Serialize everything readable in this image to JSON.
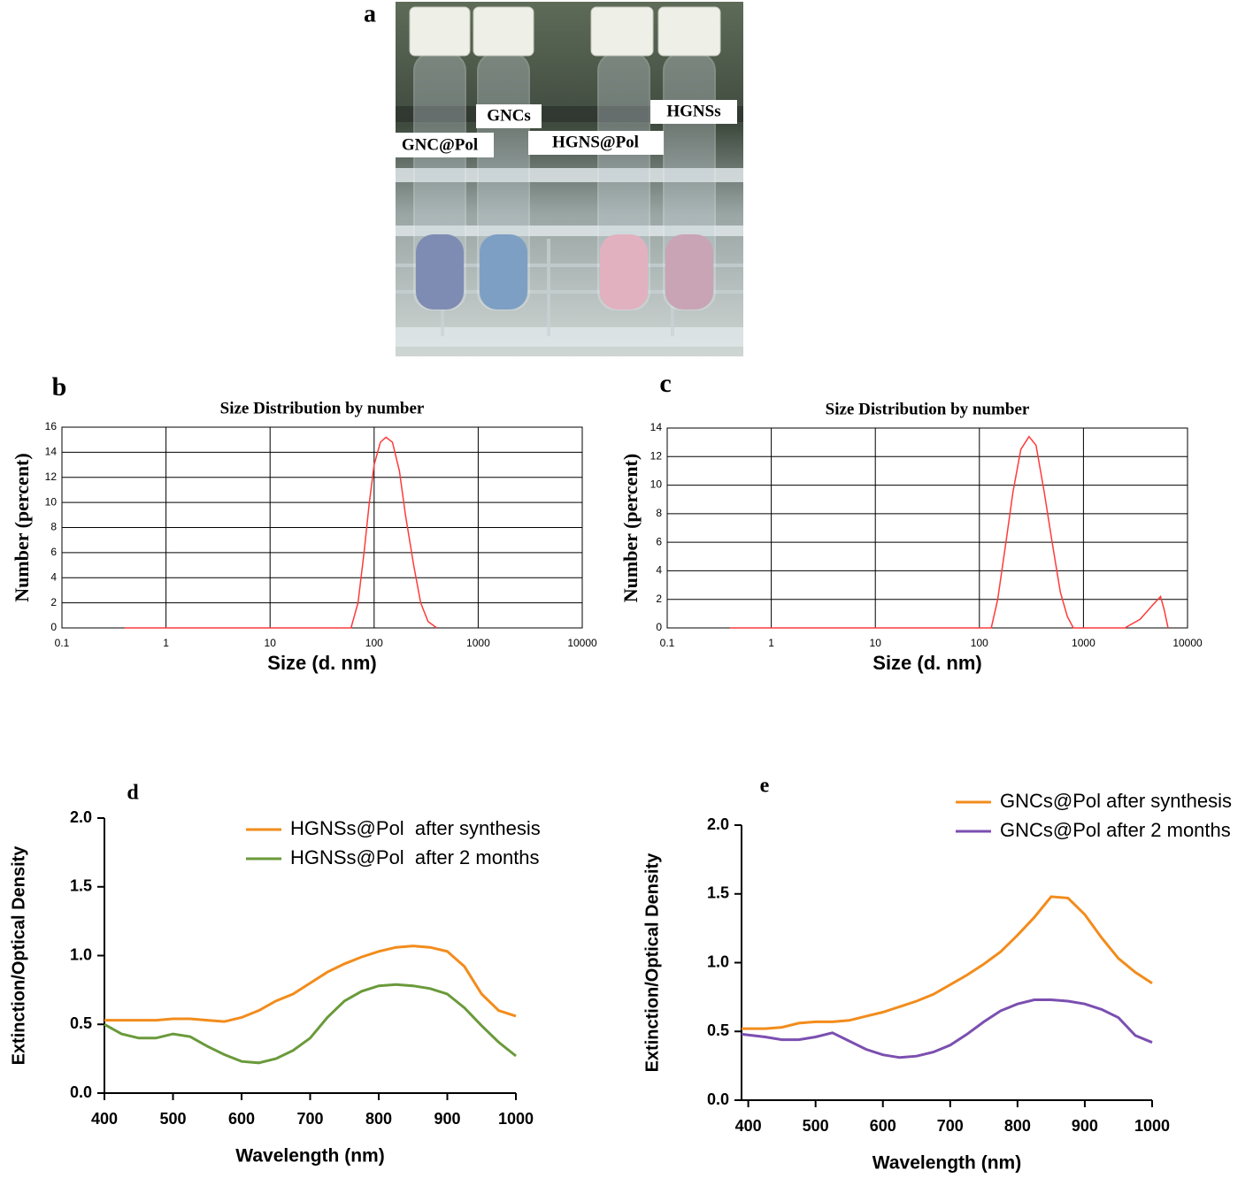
{
  "panel_a": {
    "label": "a",
    "vial_labels": [
      "GNC@Pol",
      "GNCs",
      "HGNS@Pol",
      "HGNSs"
    ]
  },
  "chart_data": [
    {
      "type": "line",
      "panel": "b",
      "title": "Size Distribution by number",
      "x_label": "Size (d. nm)",
      "y_label": "Number (percent)",
      "x_scale": "log",
      "grid": true,
      "color": "#ff3b3b",
      "x": [
        0.4,
        60,
        70,
        80,
        90,
        100,
        115,
        130,
        150,
        175,
        200,
        240,
        280,
        330,
        400
      ],
      "values": [
        0,
        0,
        2,
        6,
        10,
        13,
        14.8,
        15.2,
        14.8,
        12.5,
        9,
        5,
        2,
        0.5,
        0
      ],
      "xlim": [
        0.1,
        10000
      ],
      "xticks": [
        0.1,
        1,
        10,
        100,
        1000,
        10000
      ],
      "ylim": [
        0,
        16
      ],
      "yticks": [
        0,
        2,
        4,
        6,
        8,
        10,
        12,
        14,
        16
      ]
    },
    {
      "type": "line",
      "panel": "c",
      "title": "Size Distribution by number",
      "x_label": "Size (d. nm)",
      "y_label": "Number (percent)",
      "x_scale": "log",
      "grid": true,
      "color": "#ff3b3b",
      "x": [
        0.4,
        130,
        150,
        180,
        210,
        250,
        300,
        350,
        420,
        500,
        600,
        700,
        800,
        2500,
        3500,
        4500,
        5500,
        6000,
        6500
      ],
      "values": [
        0,
        0,
        2,
        6,
        9.5,
        12.5,
        13.4,
        12.8,
        9.5,
        6,
        2.5,
        0.8,
        0,
        0,
        0.6,
        1.5,
        2.2,
        1.2,
        0
      ],
      "xlim": [
        0.1,
        10000
      ],
      "xticks": [
        0.1,
        1,
        10,
        100,
        1000,
        10000
      ],
      "ylim": [
        0,
        14
      ],
      "yticks": [
        0,
        2,
        4,
        6,
        8,
        10,
        12,
        14
      ]
    },
    {
      "type": "line",
      "panel": "d",
      "x_label": "Wavelength (nm)",
      "y_label": "Extinction/Optical Density",
      "x_scale": "linear",
      "grid": false,
      "legend": "upper right",
      "x": [
        400,
        425,
        450,
        475,
        500,
        525,
        550,
        575,
        600,
        625,
        650,
        675,
        700,
        725,
        750,
        775,
        800,
        825,
        850,
        875,
        900,
        925,
        950,
        975,
        1000
      ],
      "series": [
        {
          "name": "HGNSs@Pol  after synthesis",
          "color": "#f28c1c",
          "values": [
            0.53,
            0.53,
            0.53,
            0.53,
            0.54,
            0.54,
            0.53,
            0.52,
            0.55,
            0.6,
            0.67,
            0.72,
            0.8,
            0.88,
            0.94,
            0.99,
            1.03,
            1.06,
            1.07,
            1.06,
            1.03,
            0.92,
            0.72,
            0.6,
            0.56
          ]
        },
        {
          "name": "HGNSs@Pol  after 2 months",
          "color": "#6a9a3a",
          "values": [
            0.5,
            0.43,
            0.4,
            0.4,
            0.43,
            0.41,
            0.34,
            0.28,
            0.23,
            0.22,
            0.25,
            0.31,
            0.4,
            0.55,
            0.67,
            0.74,
            0.78,
            0.79,
            0.78,
            0.76,
            0.72,
            0.62,
            0.49,
            0.37,
            0.27
          ]
        }
      ],
      "xlim": [
        400,
        1000
      ],
      "xticks": [
        400,
        500,
        600,
        700,
        800,
        900,
        1000
      ],
      "ylim": [
        0,
        2
      ],
      "yticks": [
        {
          "value": 0,
          "label": "0.0"
        },
        0.5,
        {
          "value": 1,
          "label": "1.0"
        },
        1.5,
        {
          "value": 2,
          "label": "2.0"
        }
      ]
    },
    {
      "type": "line",
      "panel": "e",
      "x_label": "Wavelength (nm)",
      "y_label": "Extinction/Optical Density",
      "x_scale": "linear",
      "grid": false,
      "legend": "upper right",
      "x": [
        390,
        425,
        450,
        475,
        500,
        525,
        550,
        575,
        600,
        625,
        650,
        675,
        700,
        725,
        750,
        775,
        800,
        825,
        850,
        875,
        900,
        925,
        950,
        975,
        1000
      ],
      "series": [
        {
          "name": "GNCs@Pol after synthesis",
          "color": "#f28c1c",
          "values": [
            0.52,
            0.52,
            0.53,
            0.56,
            0.57,
            0.57,
            0.58,
            0.61,
            0.64,
            0.68,
            0.72,
            0.77,
            0.84,
            0.91,
            0.99,
            1.08,
            1.2,
            1.33,
            1.48,
            1.47,
            1.35,
            1.18,
            1.03,
            0.93,
            0.85
          ]
        },
        {
          "name": "GNCs@Pol after 2 months",
          "color": "#7b4fb0",
          "values": [
            0.48,
            0.46,
            0.44,
            0.44,
            0.46,
            0.49,
            0.43,
            0.37,
            0.33,
            0.31,
            0.32,
            0.35,
            0.4,
            0.48,
            0.57,
            0.65,
            0.7,
            0.73,
            0.73,
            0.72,
            0.7,
            0.66,
            0.6,
            0.47,
            0.42
          ]
        }
      ],
      "xlim": [
        390,
        1000
      ],
      "xticks": [
        400,
        500,
        600,
        700,
        800,
        900,
        1000
      ],
      "ylim": [
        0,
        2
      ],
      "yticks": [
        {
          "value": 0,
          "label": "0.0"
        },
        0.5,
        {
          "value": 1,
          "label": "1.0"
        },
        1.5,
        {
          "value": 2,
          "label": "2.0"
        }
      ]
    }
  ]
}
